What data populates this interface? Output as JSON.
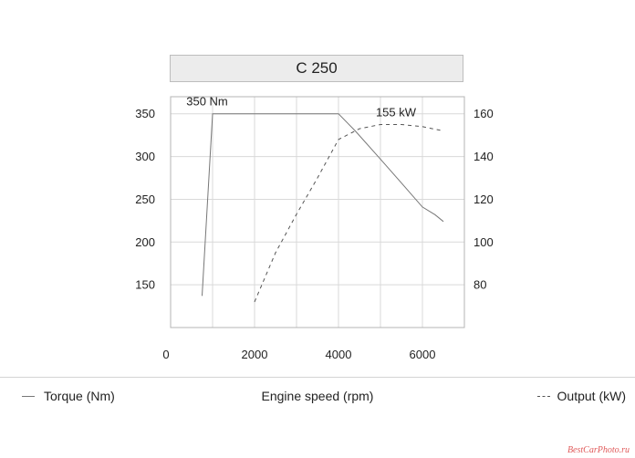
{
  "chart_data": {
    "type": "line",
    "title": "C 250",
    "xlabel": "Engine speed (rpm)",
    "xlim": [
      0,
      7000
    ],
    "x_ticks": [
      0,
      2000,
      4000,
      6000
    ],
    "y_left": {
      "label": "Torque (Nm)",
      "lim": [
        100,
        370
      ],
      "ticks": [
        150,
        200,
        250,
        300,
        350
      ]
    },
    "y_right": {
      "label": "Output (kW)",
      "lim": [
        60,
        168
      ],
      "ticks": [
        80,
        100,
        120,
        140,
        160
      ]
    },
    "grid": true,
    "series": [
      {
        "name": "Torque (Nm)",
        "axis": "left",
        "style": "solid",
        "color": "#777777",
        "x": [
          750,
          1000,
          4000,
          4400,
          5000,
          5500,
          6000,
          6300,
          6500
        ],
        "y": [
          137,
          350,
          350,
          330,
          297,
          269,
          241,
          232,
          224
        ]
      },
      {
        "name": "Output (kW)",
        "axis": "right",
        "style": "dashed",
        "color": "#555555",
        "x": [
          2000,
          2500,
          3000,
          3500,
          4000,
          4500,
          5000,
          5500,
          6000,
          6500
        ],
        "y": [
          72,
          95,
          113,
          130,
          148,
          153,
          155,
          155,
          154,
          152
        ]
      }
    ],
    "annotations": [
      {
        "text": "350 Nm",
        "x": 1000,
        "y": 350,
        "axis": "left"
      },
      {
        "text": "155 kW",
        "x": 5500,
        "y": 155,
        "axis": "right"
      }
    ]
  },
  "legend": {
    "torque_label": "Torque (Nm)",
    "xlabel": "Engine speed (rpm)",
    "output_label": "Output (kW)"
  },
  "watermark": "BestCarPhoto.ru"
}
